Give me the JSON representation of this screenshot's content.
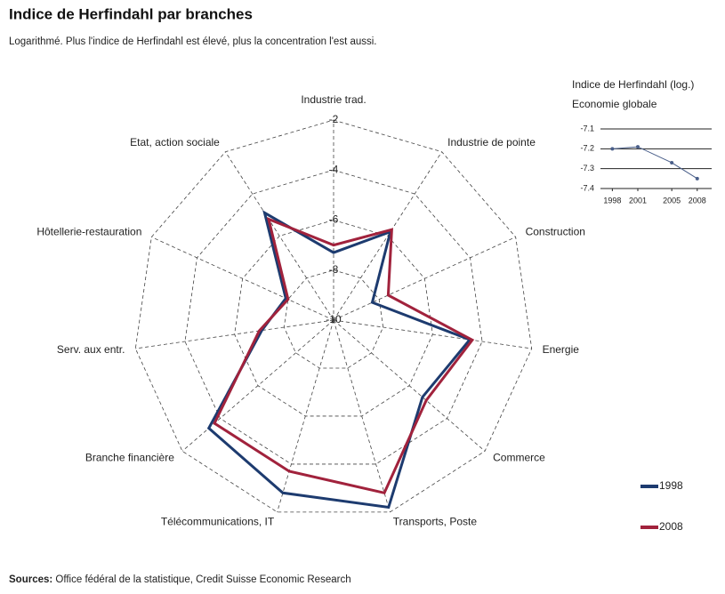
{
  "title": "Indice de Herfindahl par branches",
  "subtitle": "Logarithmé. Plus l'indice de Herfindahl est élevé, plus la concentration l'est aussi.",
  "source_label": "Sources:",
  "source": "Office fédéral de la statistique, Credit Suisse Economic Research",
  "chart_data": [
    {
      "type": "radar",
      "categories": [
        "Industrie  trad.",
        "Industrie de pointe",
        "Construction",
        "Energie",
        "Commerce",
        "Transports, Poste",
        "Télécommunications, IT",
        "Branche financière",
        "Serv. aux entr.",
        "Hôtellerie-restauration",
        "Etat, action sociale"
      ],
      "rlim": [
        -10,
        -2
      ],
      "rticks": [
        -10,
        -8,
        -6,
        -4,
        -2
      ],
      "grid": true,
      "legend": "lower right",
      "series": [
        {
          "name": "1998",
          "color": "#1d3b6f",
          "values": [
            -7.3,
            -5.8,
            -8.3,
            -4.5,
            -5.3,
            -2.2,
            -2.8,
            -3.4,
            -7.1,
            -7.9,
            -4.9
          ]
        },
        {
          "name": "2008",
          "color": "#a1223c",
          "values": [
            -7.0,
            -5.7,
            -7.6,
            -4.4,
            -5.1,
            -2.8,
            -3.7,
            -3.7,
            -7.0,
            -8.0,
            -5.2
          ]
        }
      ]
    },
    {
      "type": "line",
      "title": "Indice de Herfindahl (log.)",
      "subtitle": "Economie globale",
      "x": [
        1998,
        2001,
        2005,
        2008
      ],
      "xlim": [
        1996.6,
        2009.7
      ],
      "xticks": [
        1998,
        2001,
        2005,
        2008
      ],
      "ylim": [
        -7.4,
        -7.1
      ],
      "yticks": [
        -7.1,
        -7.2,
        -7.3,
        -7.4
      ],
      "grid": true,
      "series": [
        {
          "name": "Economie globale",
          "color": "#4a5f8a",
          "values": [
            -7.2,
            -7.19,
            -7.27,
            -7.35
          ]
        }
      ]
    }
  ]
}
